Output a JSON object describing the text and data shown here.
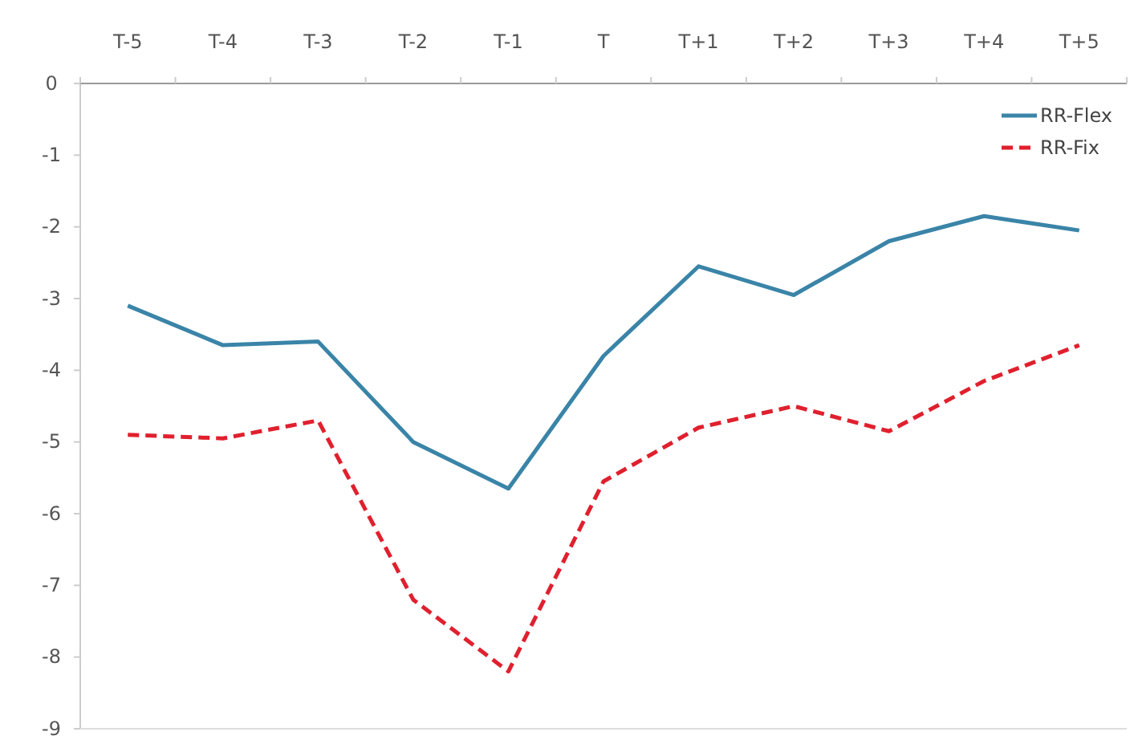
{
  "chart_data": {
    "type": "line",
    "categories": [
      "T-5",
      "T-4",
      "T-3",
      "T-2",
      "T-1",
      "T",
      "T+1",
      "T+2",
      "T+3",
      "T+4",
      "T+5"
    ],
    "series": [
      {
        "name": "RR-Flex",
        "color": "#3a84a8",
        "line_style": "solid",
        "values": [
          -3.1,
          -3.65,
          -3.6,
          -5.0,
          -5.65,
          -3.8,
          -2.55,
          -2.95,
          -2.2,
          -1.85,
          -2.05
        ]
      },
      {
        "name": "RR-Fix",
        "color": "#e0202e",
        "line_style": "dashed",
        "values": [
          -4.9,
          -4.95,
          -4.7,
          -7.2,
          -8.2,
          -5.55,
          -4.8,
          -4.5,
          -4.85,
          -4.15,
          -3.65
        ]
      }
    ],
    "ylim": [
      -9,
      0
    ],
    "yticks": [
      0,
      -1,
      -2,
      -3,
      -4,
      -5,
      -6,
      -7,
      -8,
      -9
    ],
    "grid": false,
    "legend": "top right",
    "marker": "none"
  }
}
